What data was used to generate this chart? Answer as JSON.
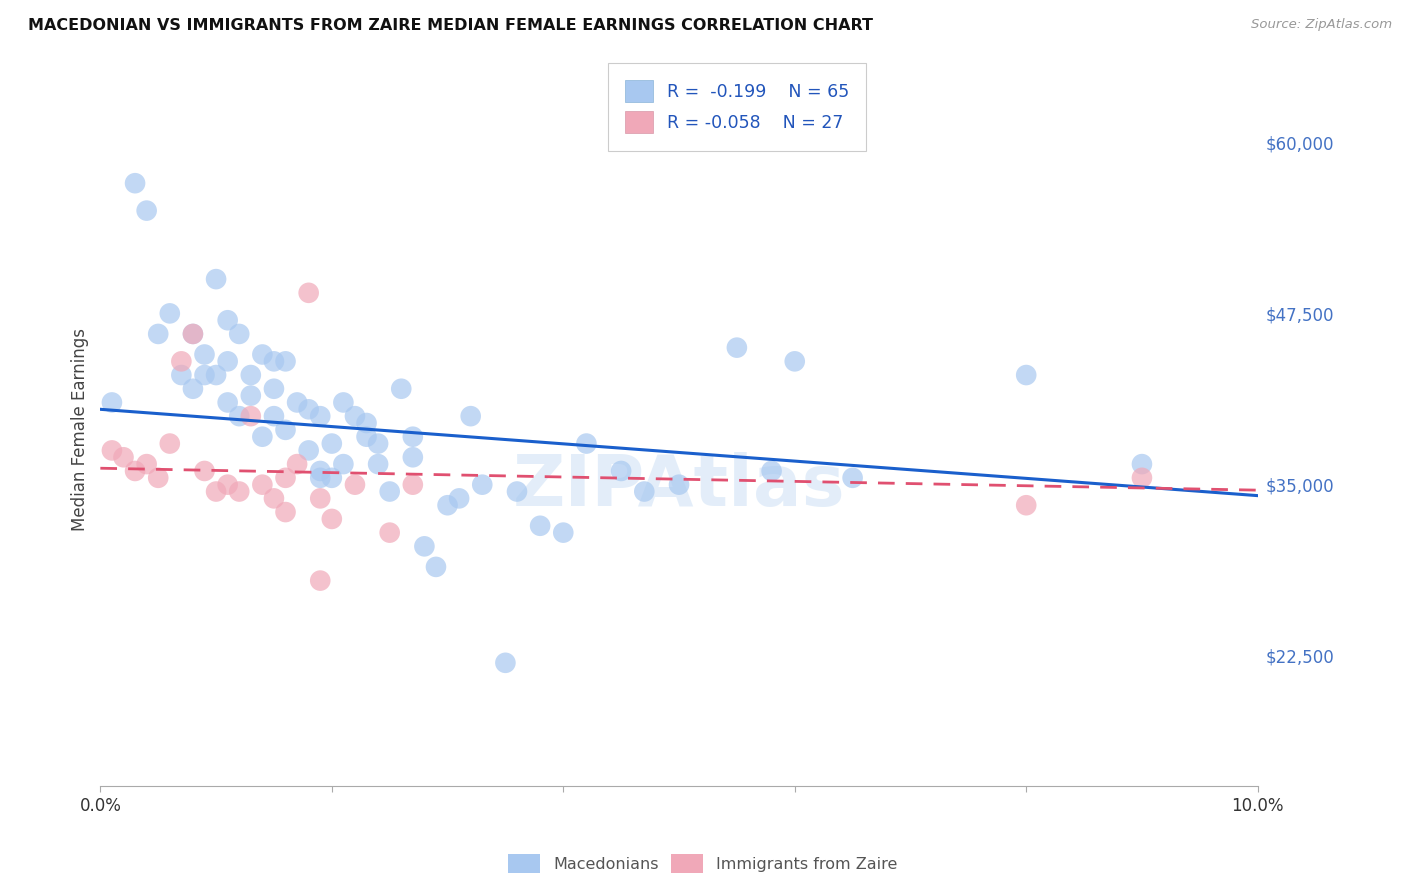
{
  "title": "MACEDONIAN VS IMMIGRANTS FROM ZAIRE MEDIAN FEMALE EARNINGS CORRELATION CHART",
  "source": "Source: ZipAtlas.com",
  "ylabel": "Median Female Earnings",
  "xlim": [
    0.0,
    0.1
  ],
  "ylim": [
    13000,
    65000
  ],
  "yticks": [
    22500,
    35000,
    47500,
    60000
  ],
  "ytick_labels": [
    "$22,500",
    "$35,000",
    "$47,500",
    "$60,000"
  ],
  "xticks": [
    0.0,
    0.02,
    0.04,
    0.06,
    0.08,
    0.1
  ],
  "xtick_labels": [
    "0.0%",
    "",
    "",
    "",
    "",
    "10.0%"
  ],
  "background_color": "#ffffff",
  "grid_color": "#d8d8d8",
  "blue_color": "#a8c8f0",
  "pink_color": "#f0a8b8",
  "blue_line_color": "#1a5fcc",
  "pink_line_color": "#e05070",
  "watermark": "ZIPAtlas",
  "legend_r1": "R =  -0.199",
  "legend_n1": "N = 65",
  "legend_r2": "R = -0.058",
  "legend_n2": "N = 27",
  "macedonians_label": "Macedonians",
  "zaire_label": "Immigrants from Zaire",
  "blue_line_x": [
    0.0,
    0.1
  ],
  "blue_line_y": [
    40500,
    34200
  ],
  "pink_line_x": [
    0.0,
    0.1
  ],
  "pink_line_y": [
    36200,
    34600
  ],
  "mac_x": [
    0.001,
    0.003,
    0.004,
    0.005,
    0.006,
    0.007,
    0.008,
    0.008,
    0.009,
    0.009,
    0.01,
    0.01,
    0.011,
    0.011,
    0.011,
    0.012,
    0.012,
    0.013,
    0.013,
    0.014,
    0.014,
    0.015,
    0.015,
    0.015,
    0.016,
    0.016,
    0.017,
    0.018,
    0.018,
    0.019,
    0.019,
    0.019,
    0.02,
    0.02,
    0.021,
    0.021,
    0.022,
    0.023,
    0.023,
    0.024,
    0.024,
    0.025,
    0.026,
    0.027,
    0.027,
    0.028,
    0.029,
    0.03,
    0.031,
    0.032,
    0.033,
    0.035,
    0.036,
    0.038,
    0.04,
    0.042,
    0.045,
    0.047,
    0.05,
    0.055,
    0.058,
    0.06,
    0.065,
    0.08,
    0.09
  ],
  "mac_y": [
    41000,
    57000,
    55000,
    46000,
    47500,
    43000,
    46000,
    42000,
    44500,
    43000,
    50000,
    43000,
    47000,
    44000,
    41000,
    46000,
    40000,
    43000,
    41500,
    44500,
    38500,
    44000,
    42000,
    40000,
    44000,
    39000,
    41000,
    40500,
    37500,
    40000,
    36000,
    35500,
    38000,
    35500,
    41000,
    36500,
    40000,
    39500,
    38500,
    38000,
    36500,
    34500,
    42000,
    38500,
    37000,
    30500,
    29000,
    33500,
    34000,
    40000,
    35000,
    22000,
    34500,
    32000,
    31500,
    38000,
    36000,
    34500,
    35000,
    45000,
    36000,
    44000,
    35500,
    43000,
    36500
  ],
  "zaire_x": [
    0.001,
    0.002,
    0.003,
    0.004,
    0.005,
    0.006,
    0.007,
    0.008,
    0.009,
    0.01,
    0.011,
    0.012,
    0.013,
    0.014,
    0.015,
    0.016,
    0.016,
    0.017,
    0.018,
    0.019,
    0.019,
    0.02,
    0.022,
    0.025,
    0.027,
    0.08,
    0.09
  ],
  "zaire_y": [
    37500,
    37000,
    36000,
    36500,
    35500,
    38000,
    44000,
    46000,
    36000,
    34500,
    35000,
    34500,
    40000,
    35000,
    34000,
    35500,
    33000,
    36500,
    49000,
    28000,
    34000,
    32500,
    35000,
    31500,
    35000,
    33500,
    35500
  ]
}
